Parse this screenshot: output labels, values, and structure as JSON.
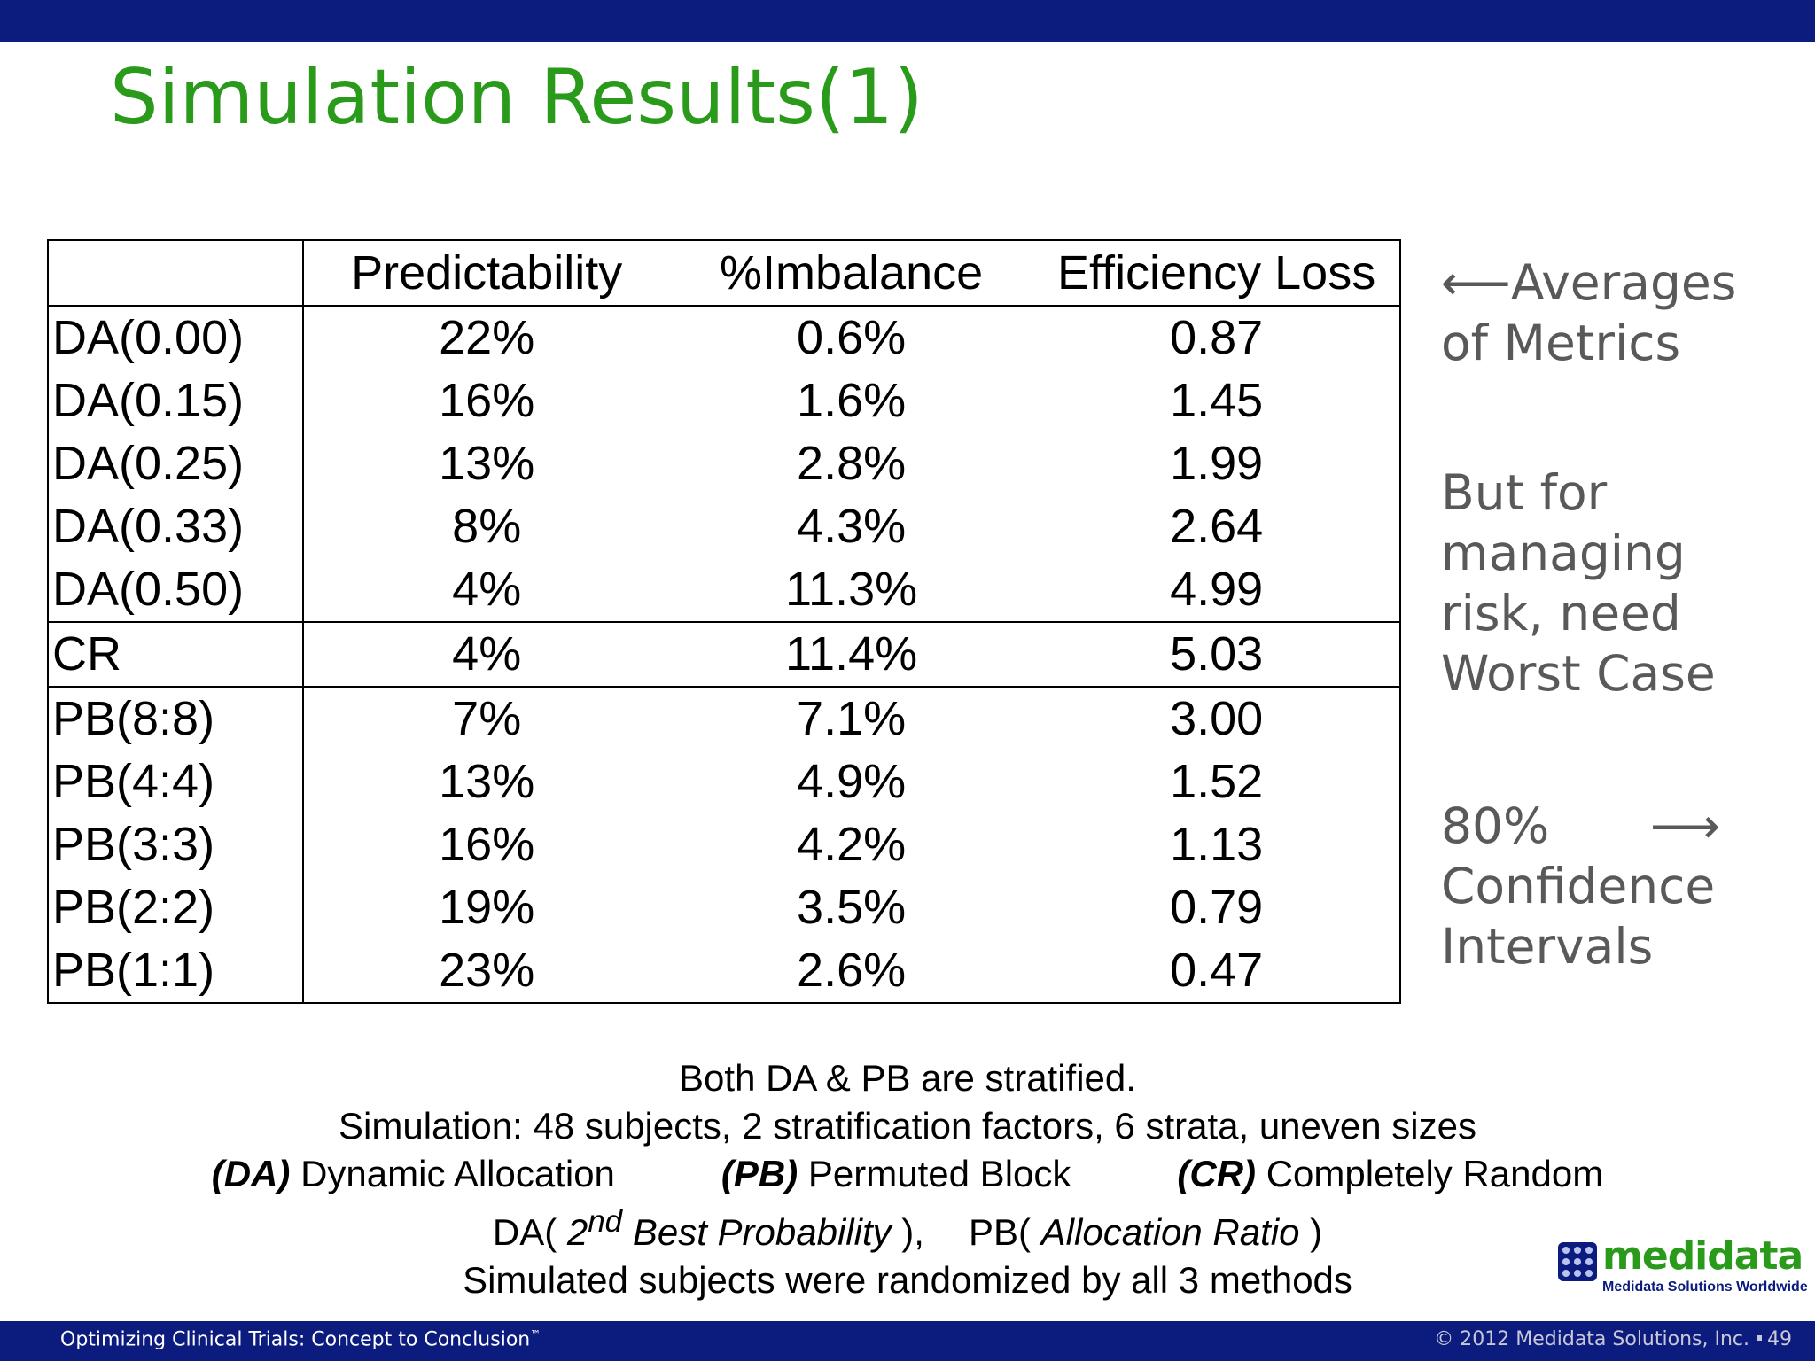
{
  "title": "Simulation Results(1)",
  "table": {
    "headers": [
      "",
      "Predictability",
      "%Imbalance",
      "Efficiency Loss"
    ],
    "groups": [
      [
        {
          "label": "DA(0.00)",
          "predictability": "22%",
          "imbalance": "0.6%",
          "efficiency_loss": "0.87"
        },
        {
          "label": "DA(0.15)",
          "predictability": "16%",
          "imbalance": "1.6%",
          "efficiency_loss": "1.45"
        },
        {
          "label": "DA(0.25)",
          "predictability": "13%",
          "imbalance": "2.8%",
          "efficiency_loss": "1.99"
        },
        {
          "label": "DA(0.33)",
          "predictability": "8%",
          "imbalance": "4.3%",
          "efficiency_loss": "2.64"
        },
        {
          "label": "DA(0.50)",
          "predictability": "4%",
          "imbalance": "11.3%",
          "efficiency_loss": "4.99"
        }
      ],
      [
        {
          "label": "CR",
          "predictability": "4%",
          "imbalance": "11.4%",
          "efficiency_loss": "5.03"
        }
      ],
      [
        {
          "label": "PB(8:8)",
          "predictability": "7%",
          "imbalance": "7.1%",
          "efficiency_loss": "3.00"
        },
        {
          "label": "PB(4:4)",
          "predictability": "13%",
          "imbalance": "4.9%",
          "efficiency_loss": "1.52"
        },
        {
          "label": "PB(3:3)",
          "predictability": "16%",
          "imbalance": "4.2%",
          "efficiency_loss": "1.13"
        },
        {
          "label": "PB(2:2)",
          "predictability": "19%",
          "imbalance": "3.5%",
          "efficiency_loss": "0.79"
        },
        {
          "label": "PB(1:1)",
          "predictability": "23%",
          "imbalance": "2.6%",
          "efficiency_loss": "0.47"
        }
      ]
    ]
  },
  "side_notes": {
    "averages": [
      "⟵Averages",
      "of Metrics"
    ],
    "worst_case": [
      "But for",
      "managing",
      "risk, need",
      "Worst Case"
    ],
    "confidence": {
      "line1": "80%",
      "arrow": "⟶",
      "line2": "Confidence",
      "line3": "Intervals"
    }
  },
  "notes": {
    "line1": "Both DA & PB are stratified.",
    "line2": "Simulation:  48 subjects, 2 stratification factors, 6 strata, uneven sizes",
    "line3": {
      "da_abbr": "(DA)",
      "da_text": " Dynamic Allocation",
      "pb_abbr": "(PB)",
      "pb_text": " Permuted Block",
      "cr_abbr": "(CR)",
      "cr_text": " Completely Random"
    },
    "line4": {
      "da_prefix": "DA( ",
      "da_num": "2",
      "da_sup": "nd",
      "da_italic": " Best Probability",
      "da_suffix": " ),",
      "pb_prefix": "PB( ",
      "pb_italic": "Allocation Ratio",
      "pb_suffix": " )"
    },
    "line5": "Simulated subjects were randomized by all 3 methods"
  },
  "logo": {
    "word": "medidata",
    "tagline": "Medidata Solutions Worldwide"
  },
  "footer": {
    "left": "Optimizing Clinical Trials: Concept to Conclusion",
    "left_tm": "™",
    "right": "© 2012 Medidata Solutions, Inc.",
    "page": "49"
  },
  "colors": {
    "title_green": "#2a9a1a",
    "bar_navy": "#0b1b7e",
    "side_gray": "#595959"
  }
}
